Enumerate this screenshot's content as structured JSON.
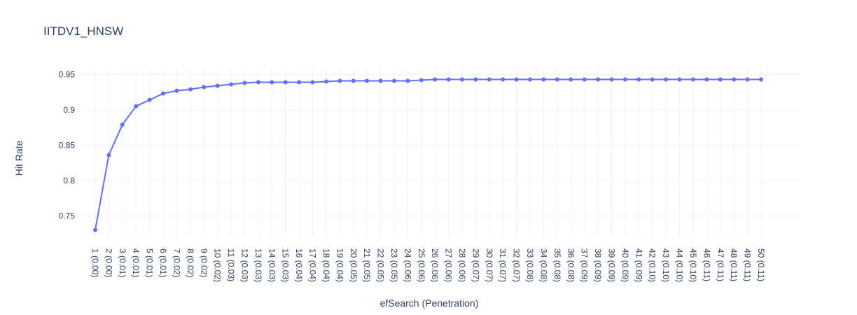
{
  "chart_data": {
    "type": "line",
    "title": "IITDV1_HNSW",
    "xlabel": "efSearch (Penetration)",
    "ylabel": "Hit Rate",
    "categories": [
      "1 (0.00)",
      "2 (0.00)",
      "3 (0.01)",
      "4 (0.01)",
      "5 (0.01)",
      "6 (0.01)",
      "7 (0.02)",
      "8 (0.02)",
      "9 (0.02)",
      "10 (0.02)",
      "11 (0.03)",
      "12 (0.03)",
      "13 (0.03)",
      "14 (0.03)",
      "15 (0.03)",
      "16 (0.04)",
      "17 (0.04)",
      "18 (0.04)",
      "19 (0.04)",
      "20 (0.05)",
      "21 (0.05)",
      "22 (0.05)",
      "23 (0.05)",
      "24 (0.06)",
      "25 (0.06)",
      "26 (0.06)",
      "27 (0.06)",
      "28 (0.06)",
      "29 (0.07)",
      "30 (0.07)",
      "31 (0.07)",
      "32 (0.07)",
      "33 (0.08)",
      "34 (0.08)",
      "35 (0.08)",
      "36 (0.08)",
      "37 (0.09)",
      "38 (0.09)",
      "39 (0.09)",
      "40 (0.09)",
      "41 (0.09)",
      "42 (0.10)",
      "43 (0.10)",
      "44 (0.10)",
      "45 (0.10)",
      "46 (0.11)",
      "47 (0.11)",
      "48 (0.11)",
      "49 (0.11)",
      "50 (0.11)"
    ],
    "series": [
      {
        "values": [
          0.73,
          0.836,
          0.879,
          0.905,
          0.914,
          0.923,
          0.927,
          0.929,
          0.932,
          0.934,
          0.936,
          0.938,
          0.939,
          0.939,
          0.939,
          0.939,
          0.939,
          0.94,
          0.941,
          0.941,
          0.941,
          0.941,
          0.941,
          0.941,
          0.942,
          0.943,
          0.943,
          0.943,
          0.943,
          0.943,
          0.943,
          0.943,
          0.943,
          0.943,
          0.943,
          0.943,
          0.943,
          0.943,
          0.943,
          0.943,
          0.943,
          0.943,
          0.943,
          0.943,
          0.943,
          0.943,
          0.943,
          0.943,
          0.943,
          0.943
        ],
        "color": "#636efa"
      }
    ],
    "yticks": [
      0.75,
      0.8,
      0.85,
      0.9,
      0.95
    ],
    "ytick_labels": [
      "0.75",
      "0.8",
      "0.85",
      "0.9",
      "0.95"
    ],
    "ylim": [
      0.7206,
      0.9583
    ],
    "grid": true,
    "legend": "none"
  }
}
